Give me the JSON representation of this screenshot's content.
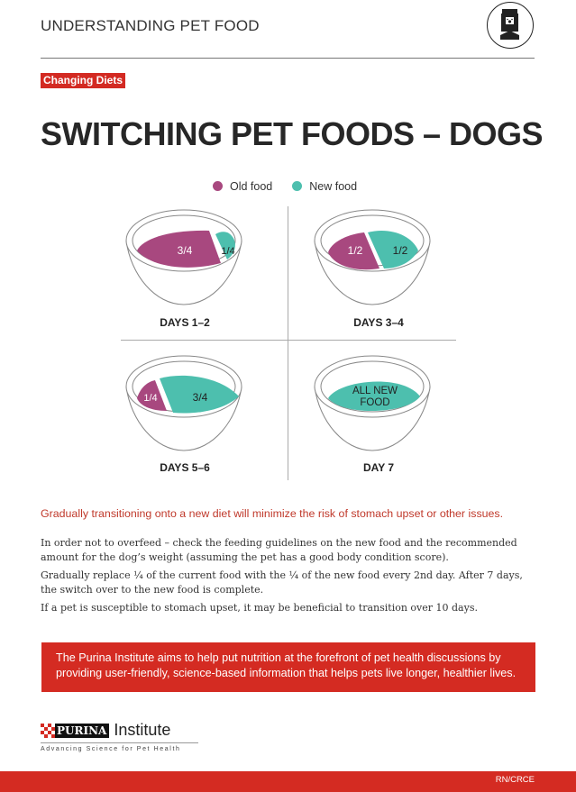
{
  "header": {
    "title": "UNDERSTANDING PET FOOD",
    "icon": "pet-food-bag-icon"
  },
  "tag": "Changing Diets",
  "title": "SWITCHING PET FOODS – DOGS",
  "legend": {
    "old": {
      "label": "Old food",
      "color": "#a8487f"
    },
    "new": {
      "label": "New food",
      "color": "#4dbfae"
    }
  },
  "stages": [
    {
      "label": "DAYS 1–2",
      "old": "3/4",
      "new": "1/4"
    },
    {
      "label": "DAYS 3–4",
      "old": "1/2",
      "new": "1/2"
    },
    {
      "label": "DAYS 5–6",
      "old": "1/4",
      "new": "3/4"
    },
    {
      "label": "DAY 7",
      "new_line1": "ALL NEW",
      "new_line2": "FOOD"
    }
  ],
  "lead": "Gradually transitioning onto a new diet will minimize the risk of stomach upset or other issues.",
  "paragraphs": [
    "In order not to overfeed – check the feeding guidelines on the new food and the recommended amount for the dog’s weight (assuming the pet has a good body condition score).",
    "Gradually replace ¼ of the current food with the ¼ of the new food every 2nd day. After 7 days, the switch over to the new food is complete.",
    "If a pet is susceptible to stomach upset, it may be beneficial to transition over 10 days."
  ],
  "banner": "The Purina Institute aims to help put nutrition at the forefront of pet health discussions by providing user-friendly, science-based information that helps pets live longer, healthier lives.",
  "logo": {
    "brand": "PURINA",
    "name": "Institute",
    "tagline": "Advancing Science for Pet Health"
  },
  "footer": {
    "code": "RN/CRCE"
  },
  "colors": {
    "accent": "#d42b22"
  }
}
